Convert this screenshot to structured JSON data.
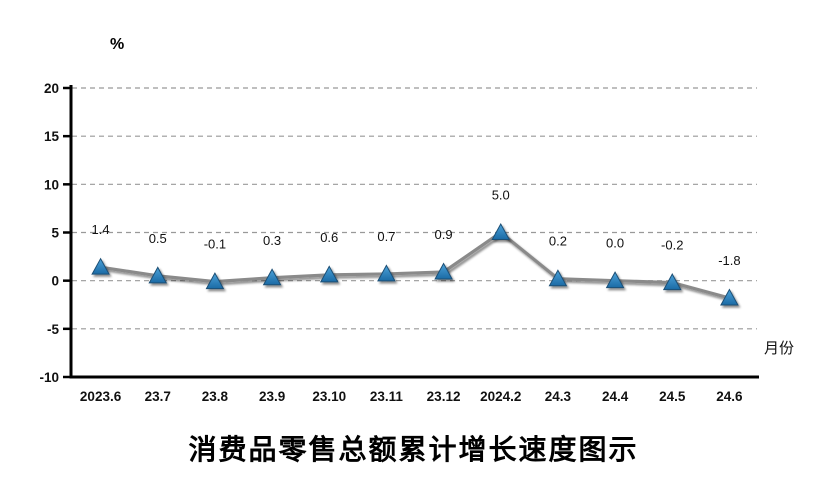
{
  "chart_data": {
    "type": "line",
    "title": "消费品零售总额累计增长速度图示",
    "y_axis_unit_label": "%",
    "x_axis_label": "月份",
    "categories": [
      "2023.6",
      "23.7",
      "23.8",
      "23.9",
      "23.10",
      "23.11",
      "23.12",
      "2024.2",
      "24.3",
      "24.4",
      "24.5",
      "24.6"
    ],
    "values": [
      1.4,
      0.5,
      -0.1,
      0.3,
      0.6,
      0.7,
      0.9,
      5.0,
      0.2,
      0.0,
      -0.2,
      -1.8
    ],
    "data_labels": [
      "1.4",
      "0.5",
      "-0.1",
      "0.3",
      "0.6",
      "0.7",
      "0.9",
      "5.0",
      "0.2",
      "0.0",
      "-0.2",
      "-1.8"
    ],
    "ylim": [
      -10,
      20
    ],
    "y_ticks": [
      20,
      15,
      10,
      5,
      0,
      -5,
      -10
    ],
    "grid": "horizontal-dashed",
    "legend": "none",
    "marker": "triangle-up",
    "colors": {
      "line": "#8a8a8a",
      "marker_top": "#4ba2d9",
      "marker_bottom": "#1b6aa5",
      "marker_border": "#1d4f75",
      "grid": "#999999",
      "axis": "#000000",
      "text": "#111111",
      "background": "#ffffff"
    }
  }
}
